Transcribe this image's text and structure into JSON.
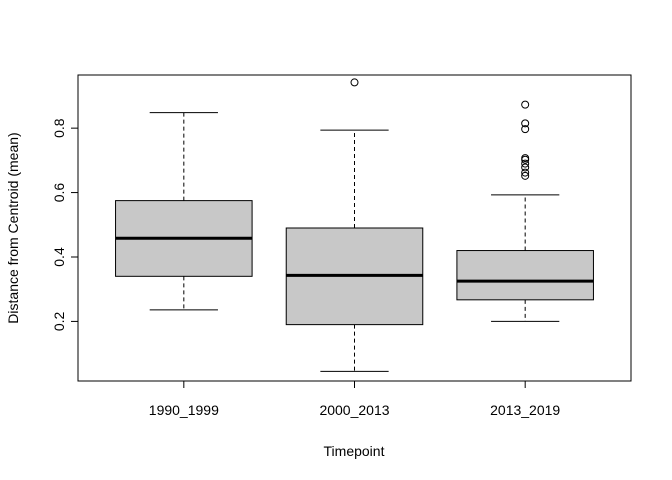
{
  "chart_data": {
    "type": "boxplot",
    "title": "",
    "xlabel": "Timepoint",
    "ylabel": "Distance from Centroid (mean)",
    "ylim": [
      0.015,
      0.965
    ],
    "yticks": [
      0.2,
      0.4,
      0.6,
      0.8
    ],
    "ytick_labels": [
      "0.2",
      "0.4",
      "0.6",
      "0.8"
    ],
    "box_fill": "#c8c8c8",
    "line_color": "#000000",
    "groups": [
      {
        "label": "1990_1999",
        "whisker_low": 0.236,
        "q1": 0.34,
        "median": 0.458,
        "q3": 0.575,
        "whisker_high": 0.848,
        "outliers": []
      },
      {
        "label": "2000_2013",
        "whisker_low": 0.045,
        "q1": 0.19,
        "median": 0.343,
        "q3": 0.49,
        "whisker_high": 0.794,
        "outliers": [
          0.942
        ]
      },
      {
        "label": "2013_2019",
        "whisker_low": 0.2,
        "q1": 0.267,
        "median": 0.325,
        "q3": 0.42,
        "whisker_high": 0.593,
        "outliers": [
          0.652,
          0.662,
          0.678,
          0.69,
          0.702,
          0.707,
          0.797,
          0.815,
          0.873
        ]
      }
    ]
  }
}
